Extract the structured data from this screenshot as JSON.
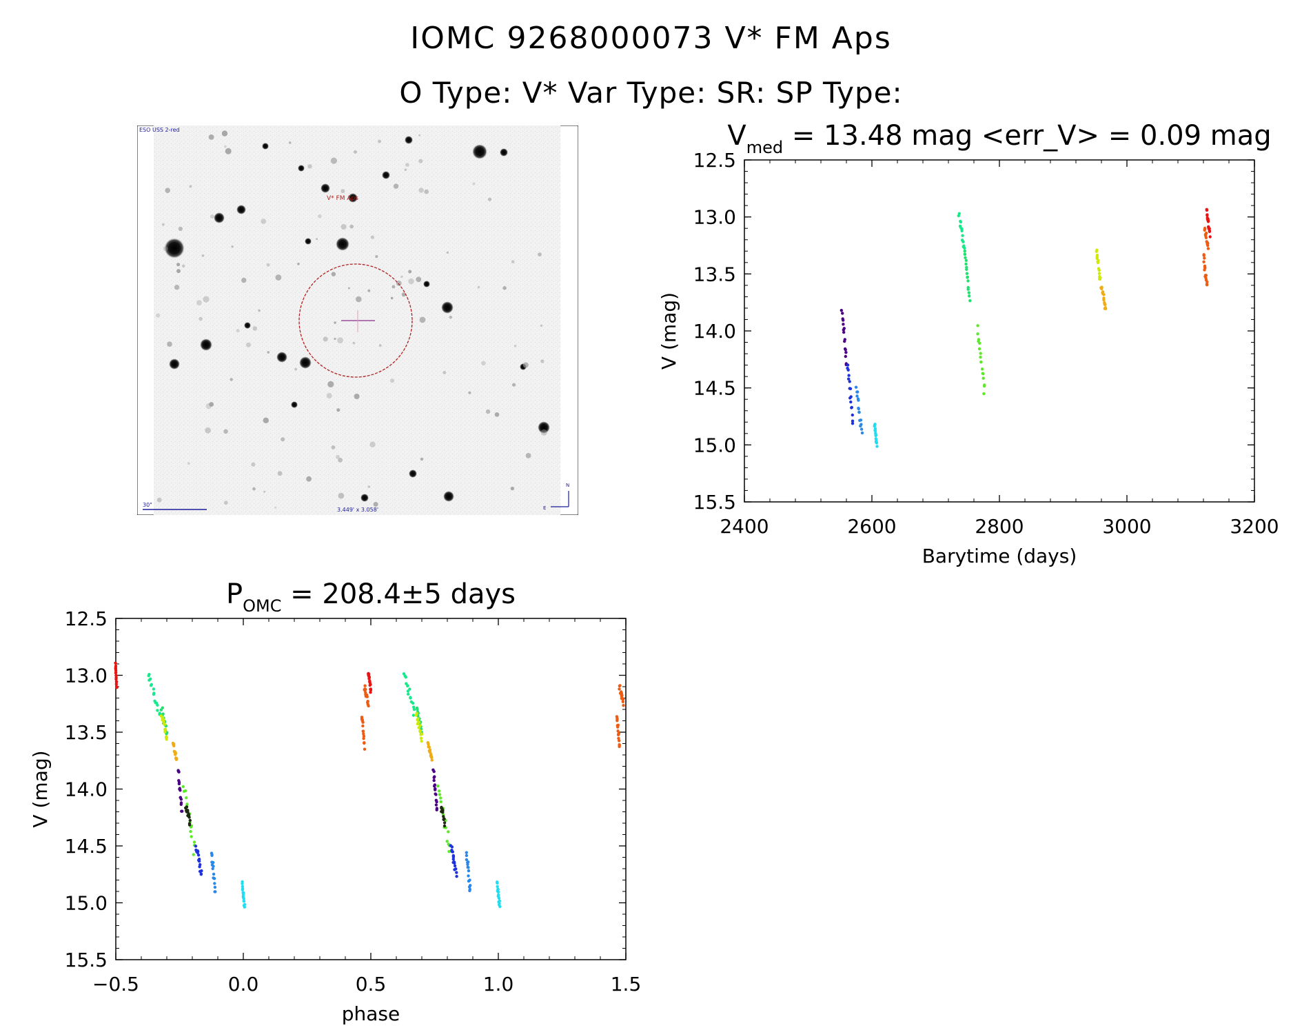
{
  "header": {
    "line1": "IOMC 9268000073    V* FM Aps",
    "line2": "O Type: V*   Var Type: SR:   SP Type:"
  },
  "finder_chart": {
    "survey_label": "ESO USS 2-red",
    "target_label": "V* FM Aps",
    "scale_label": "30\"",
    "size_label": "3.449' x 3.058'",
    "compass_n": "N",
    "compass_e": "E",
    "circle_color": "#b02020",
    "cross_color": "#8a2b8a"
  },
  "chart_data": [
    {
      "id": "lightcurve",
      "type": "scatter",
      "title_prefix": "V",
      "title_sub": "med",
      "title_rest": " = 13.48 mag <err_V> = 0.09 mag",
      "xlabel": "Barytime (days)",
      "ylabel": "V (mag)",
      "xlim": [
        2400,
        3200
      ],
      "ylim": [
        15.5,
        12.5
      ],
      "y_inverted": true,
      "xticks": [
        "2400",
        "2600",
        "2800",
        "3000",
        "3200"
      ],
      "yticks": [
        "12.5",
        "13.0",
        "13.5",
        "14.0",
        "14.5",
        "15.0",
        "15.5"
      ],
      "series": [
        {
          "name": "block1",
          "color": "#4b0082",
          "x": [
            2553,
            2560
          ],
          "y": [
            13.8,
            14.3
          ]
        },
        {
          "name": "block2",
          "color": "#1e32dc",
          "x": [
            2562,
            2570
          ],
          "y": [
            14.3,
            14.8
          ]
        },
        {
          "name": "block3",
          "color": "#2a88e6",
          "x": [
            2576,
            2584
          ],
          "y": [
            14.5,
            14.9
          ]
        },
        {
          "name": "block4",
          "color": "#22dcf0",
          "x": [
            2604,
            2608
          ],
          "y": [
            14.82,
            15.02
          ]
        },
        {
          "name": "block5",
          "color": "#18e88c",
          "x": [
            2737,
            2745
          ],
          "y": [
            12.97,
            13.3
          ]
        },
        {
          "name": "block6",
          "color": "#22e070",
          "x": [
            2746,
            2753
          ],
          "y": [
            13.3,
            13.72
          ]
        },
        {
          "name": "block7",
          "color": "#5ee82a",
          "x": [
            2765,
            2777
          ],
          "y": [
            13.97,
            14.55
          ]
        },
        {
          "name": "block8",
          "color": "#d0e80a",
          "x": [
            2952,
            2958
          ],
          "y": [
            13.28,
            13.55
          ]
        },
        {
          "name": "block9",
          "color": "#f0ac14",
          "x": [
            2960,
            2967
          ],
          "y": [
            13.6,
            13.82
          ]
        },
        {
          "name": "block10",
          "color": "#ee5c14",
          "x": [
            3120,
            3126
          ],
          "y": [
            13.35,
            13.62
          ]
        },
        {
          "name": "block11",
          "color": "#ee5c14",
          "x": [
            3122,
            3127
          ],
          "y": [
            13.1,
            13.25
          ]
        },
        {
          "name": "block12",
          "color": "#e81414",
          "x": [
            3125,
            3130
          ],
          "y": [
            12.95,
            13.15
          ]
        }
      ]
    },
    {
      "id": "phased",
      "type": "scatter",
      "title_prefix": "P",
      "title_sub": "OMC",
      "title_rest": " = 208.4±5 days",
      "xlabel": "phase",
      "ylabel": "V (mag)",
      "xlim": [
        -0.5,
        1.5
      ],
      "ylim": [
        15.5,
        12.5
      ],
      "y_inverted": true,
      "xticks": [
        "−0.5",
        "0.0",
        "0.5",
        "1.0",
        "1.5"
      ],
      "yticks": [
        "12.5",
        "13.0",
        "13.5",
        "14.0",
        "14.5",
        "15.0",
        "15.5"
      ],
      "series": [
        {
          "name": "block5",
          "color": "#18e88c",
          "x": [
            -0.37,
            -0.33
          ],
          "y": [
            12.97,
            13.35
          ]
        },
        {
          "name": "block6",
          "color": "#22e070",
          "x": [
            -0.32,
            -0.3
          ],
          "y": [
            13.3,
            13.5
          ]
        },
        {
          "name": "block8",
          "color": "#d0e80a",
          "x": [
            -0.32,
            -0.3
          ],
          "y": [
            13.35,
            13.55
          ]
        },
        {
          "name": "block9",
          "color": "#f0ac14",
          "x": [
            -0.275,
            -0.26
          ],
          "y": [
            13.6,
            13.75
          ]
        },
        {
          "name": "block1",
          "color": "#4b0082",
          "x": [
            -0.255,
            -0.24
          ],
          "y": [
            13.82,
            14.2
          ]
        },
        {
          "name": "block7",
          "color": "#5ee82a",
          "x": [
            -0.235,
            -0.19
          ],
          "y": [
            13.97,
            14.55
          ]
        },
        {
          "name": "block7b",
          "color": "#1c2a10",
          "x": [
            -0.225,
            -0.21
          ],
          "y": [
            14.15,
            14.3
          ]
        },
        {
          "name": "block2",
          "color": "#1e32dc",
          "x": [
            -0.185,
            -0.165
          ],
          "y": [
            14.5,
            14.75
          ]
        },
        {
          "name": "block3",
          "color": "#2a88e6",
          "x": [
            -0.125,
            -0.11
          ],
          "y": [
            14.55,
            14.9
          ]
        },
        {
          "name": "block4",
          "color": "#22dcf0",
          "x": [
            -0.005,
            0.005
          ],
          "y": [
            14.82,
            15.03
          ]
        },
        {
          "name": "block10",
          "color": "#ee5c14",
          "x": [
            0.465,
            0.475
          ],
          "y": [
            13.35,
            13.62
          ]
        },
        {
          "name": "block11",
          "color": "#ee5c14",
          "x": [
            0.475,
            0.49
          ],
          "y": [
            13.1,
            13.25
          ]
        },
        {
          "name": "block12",
          "color": "#e81414",
          "x": [
            0.49,
            0.5
          ],
          "y": [
            12.97,
            13.15
          ]
        },
        {
          "name": "block5r",
          "color": "#18e88c",
          "x": [
            0.63,
            0.67
          ],
          "y": [
            12.97,
            13.35
          ]
        },
        {
          "name": "block6r",
          "color": "#22e070",
          "x": [
            0.68,
            0.7
          ],
          "y": [
            13.3,
            13.5
          ]
        },
        {
          "name": "block8r",
          "color": "#d0e80a",
          "x": [
            0.68,
            0.7
          ],
          "y": [
            13.35,
            13.55
          ]
        },
        {
          "name": "block9r",
          "color": "#f0ac14",
          "x": [
            0.725,
            0.74
          ],
          "y": [
            13.6,
            13.75
          ]
        },
        {
          "name": "block1r",
          "color": "#4b0082",
          "x": [
            0.745,
            0.76
          ],
          "y": [
            13.82,
            14.2
          ]
        },
        {
          "name": "block7r",
          "color": "#5ee82a",
          "x": [
            0.765,
            0.81
          ],
          "y": [
            13.97,
            14.55
          ]
        },
        {
          "name": "block7br",
          "color": "#1c2a10",
          "x": [
            0.775,
            0.79
          ],
          "y": [
            14.15,
            14.3
          ]
        },
        {
          "name": "block2r",
          "color": "#1e32dc",
          "x": [
            0.815,
            0.835
          ],
          "y": [
            14.5,
            14.75
          ]
        },
        {
          "name": "block3r",
          "color": "#2a88e6",
          "x": [
            0.875,
            0.89
          ],
          "y": [
            14.55,
            14.9
          ]
        },
        {
          "name": "block4r",
          "color": "#22dcf0",
          "x": [
            0.995,
            1.005
          ],
          "y": [
            14.82,
            15.03
          ]
        },
        {
          "name": "block10r",
          "color": "#ee5c14",
          "x": [
            1.465,
            1.475
          ],
          "y": [
            13.35,
            13.62
          ]
        },
        {
          "name": "block11r",
          "color": "#ee5c14",
          "x": [
            1.475,
            1.49
          ],
          "y": [
            13.1,
            13.25
          ]
        },
        {
          "name": "block0",
          "color": "#e81414",
          "x": [
            -0.5,
            -0.495
          ],
          "y": [
            12.97,
            13.15
          ]
        }
      ]
    }
  ]
}
